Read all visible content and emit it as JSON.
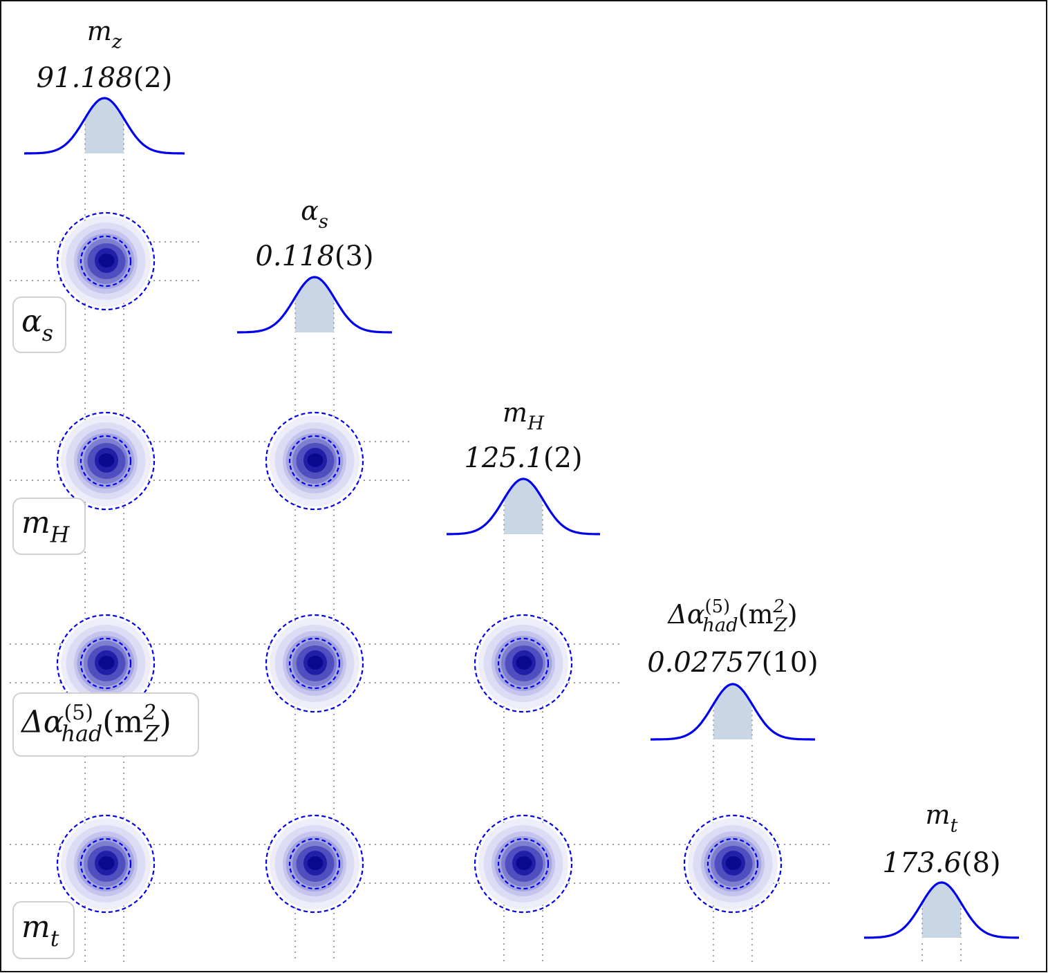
{
  "chart_data": {
    "type": "corner",
    "parameters": [
      {
        "symbol": "m",
        "sub": "z",
        "value": "91.188",
        "unc": "(2)",
        "row_label": ""
      },
      {
        "symbol": "α",
        "sub": "s",
        "value": "0.118",
        "unc": "(3)",
        "row_label": "α_s"
      },
      {
        "symbol": "m",
        "sub": "H",
        "value": "125.1",
        "unc": "(2)",
        "row_label": "m_H"
      },
      {
        "symbol": "Δα",
        "sub": "had",
        "sup": "(5)",
        "tail": "(m",
        "tail_sub": "Z",
        "tail_sup": "2",
        "tail_end": ")",
        "value": "0.02757",
        "unc": "(10)",
        "row_label": "Δα_had^(5)(m_Z^2)"
      },
      {
        "symbol": "m",
        "sub": "t",
        "value": "173.6",
        "unc": "(8)",
        "row_label": "m_t"
      }
    ],
    "contour_levels": [
      "68%",
      "95%"
    ],
    "colors": {
      "line": "#0000ee",
      "band": "#c8d6e6",
      "fill": "#1010b0",
      "grid": "#777777"
    }
  }
}
